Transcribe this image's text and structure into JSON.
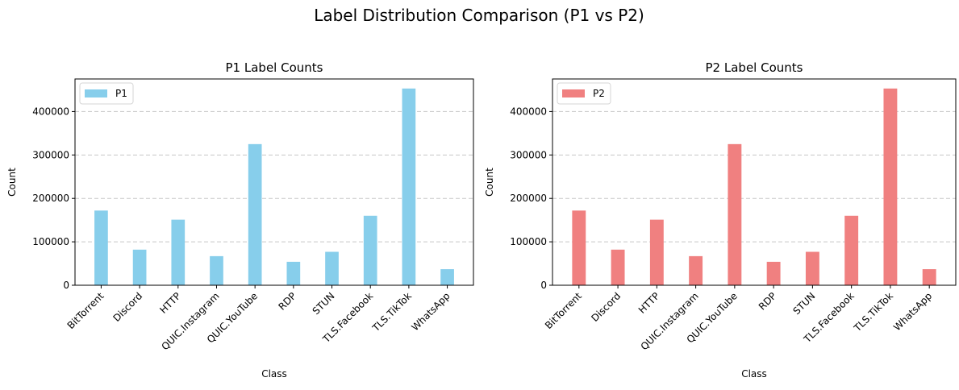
{
  "figure": {
    "suptitle": "Label Distribution Comparison (P1 vs P2)"
  },
  "chart_data": [
    {
      "type": "bar",
      "title": "P1 Label Counts",
      "xlabel": "Class",
      "ylabel": "Count",
      "ylim": [
        0,
        475000
      ],
      "yticks": [
        0,
        100000,
        200000,
        300000,
        400000
      ],
      "grid": "y-dashed",
      "legend": "top-left",
      "categories": [
        "BitTorrent",
        "Discord",
        "HTTP",
        "QUIC.Instagram",
        "QUIC.YouTube",
        "RDP",
        "STUN",
        "TLS.Facebook",
        "TLS.TikTok",
        "WhatsApp"
      ],
      "series": [
        {
          "name": "P1",
          "color": "#87ceeb",
          "values": [
            172000,
            82000,
            151000,
            67000,
            325000,
            54000,
            77000,
            160000,
            453000,
            37000
          ]
        }
      ]
    },
    {
      "type": "bar",
      "title": "P2 Label Counts",
      "xlabel": "Class",
      "ylabel": "Count",
      "ylim": [
        0,
        475000
      ],
      "yticks": [
        0,
        100000,
        200000,
        300000,
        400000
      ],
      "grid": "y-dashed",
      "legend": "top-left",
      "categories": [
        "BitTorrent",
        "Discord",
        "HTTP",
        "QUIC.Instagram",
        "QUIC.YouTube",
        "RDP",
        "STUN",
        "TLS.Facebook",
        "TLS.TikTok",
        "WhatsApp"
      ],
      "series": [
        {
          "name": "P2",
          "color": "#f08080",
          "values": [
            172000,
            82000,
            151000,
            67000,
            325000,
            54000,
            77000,
            160000,
            453000,
            37000
          ]
        }
      ]
    }
  ]
}
